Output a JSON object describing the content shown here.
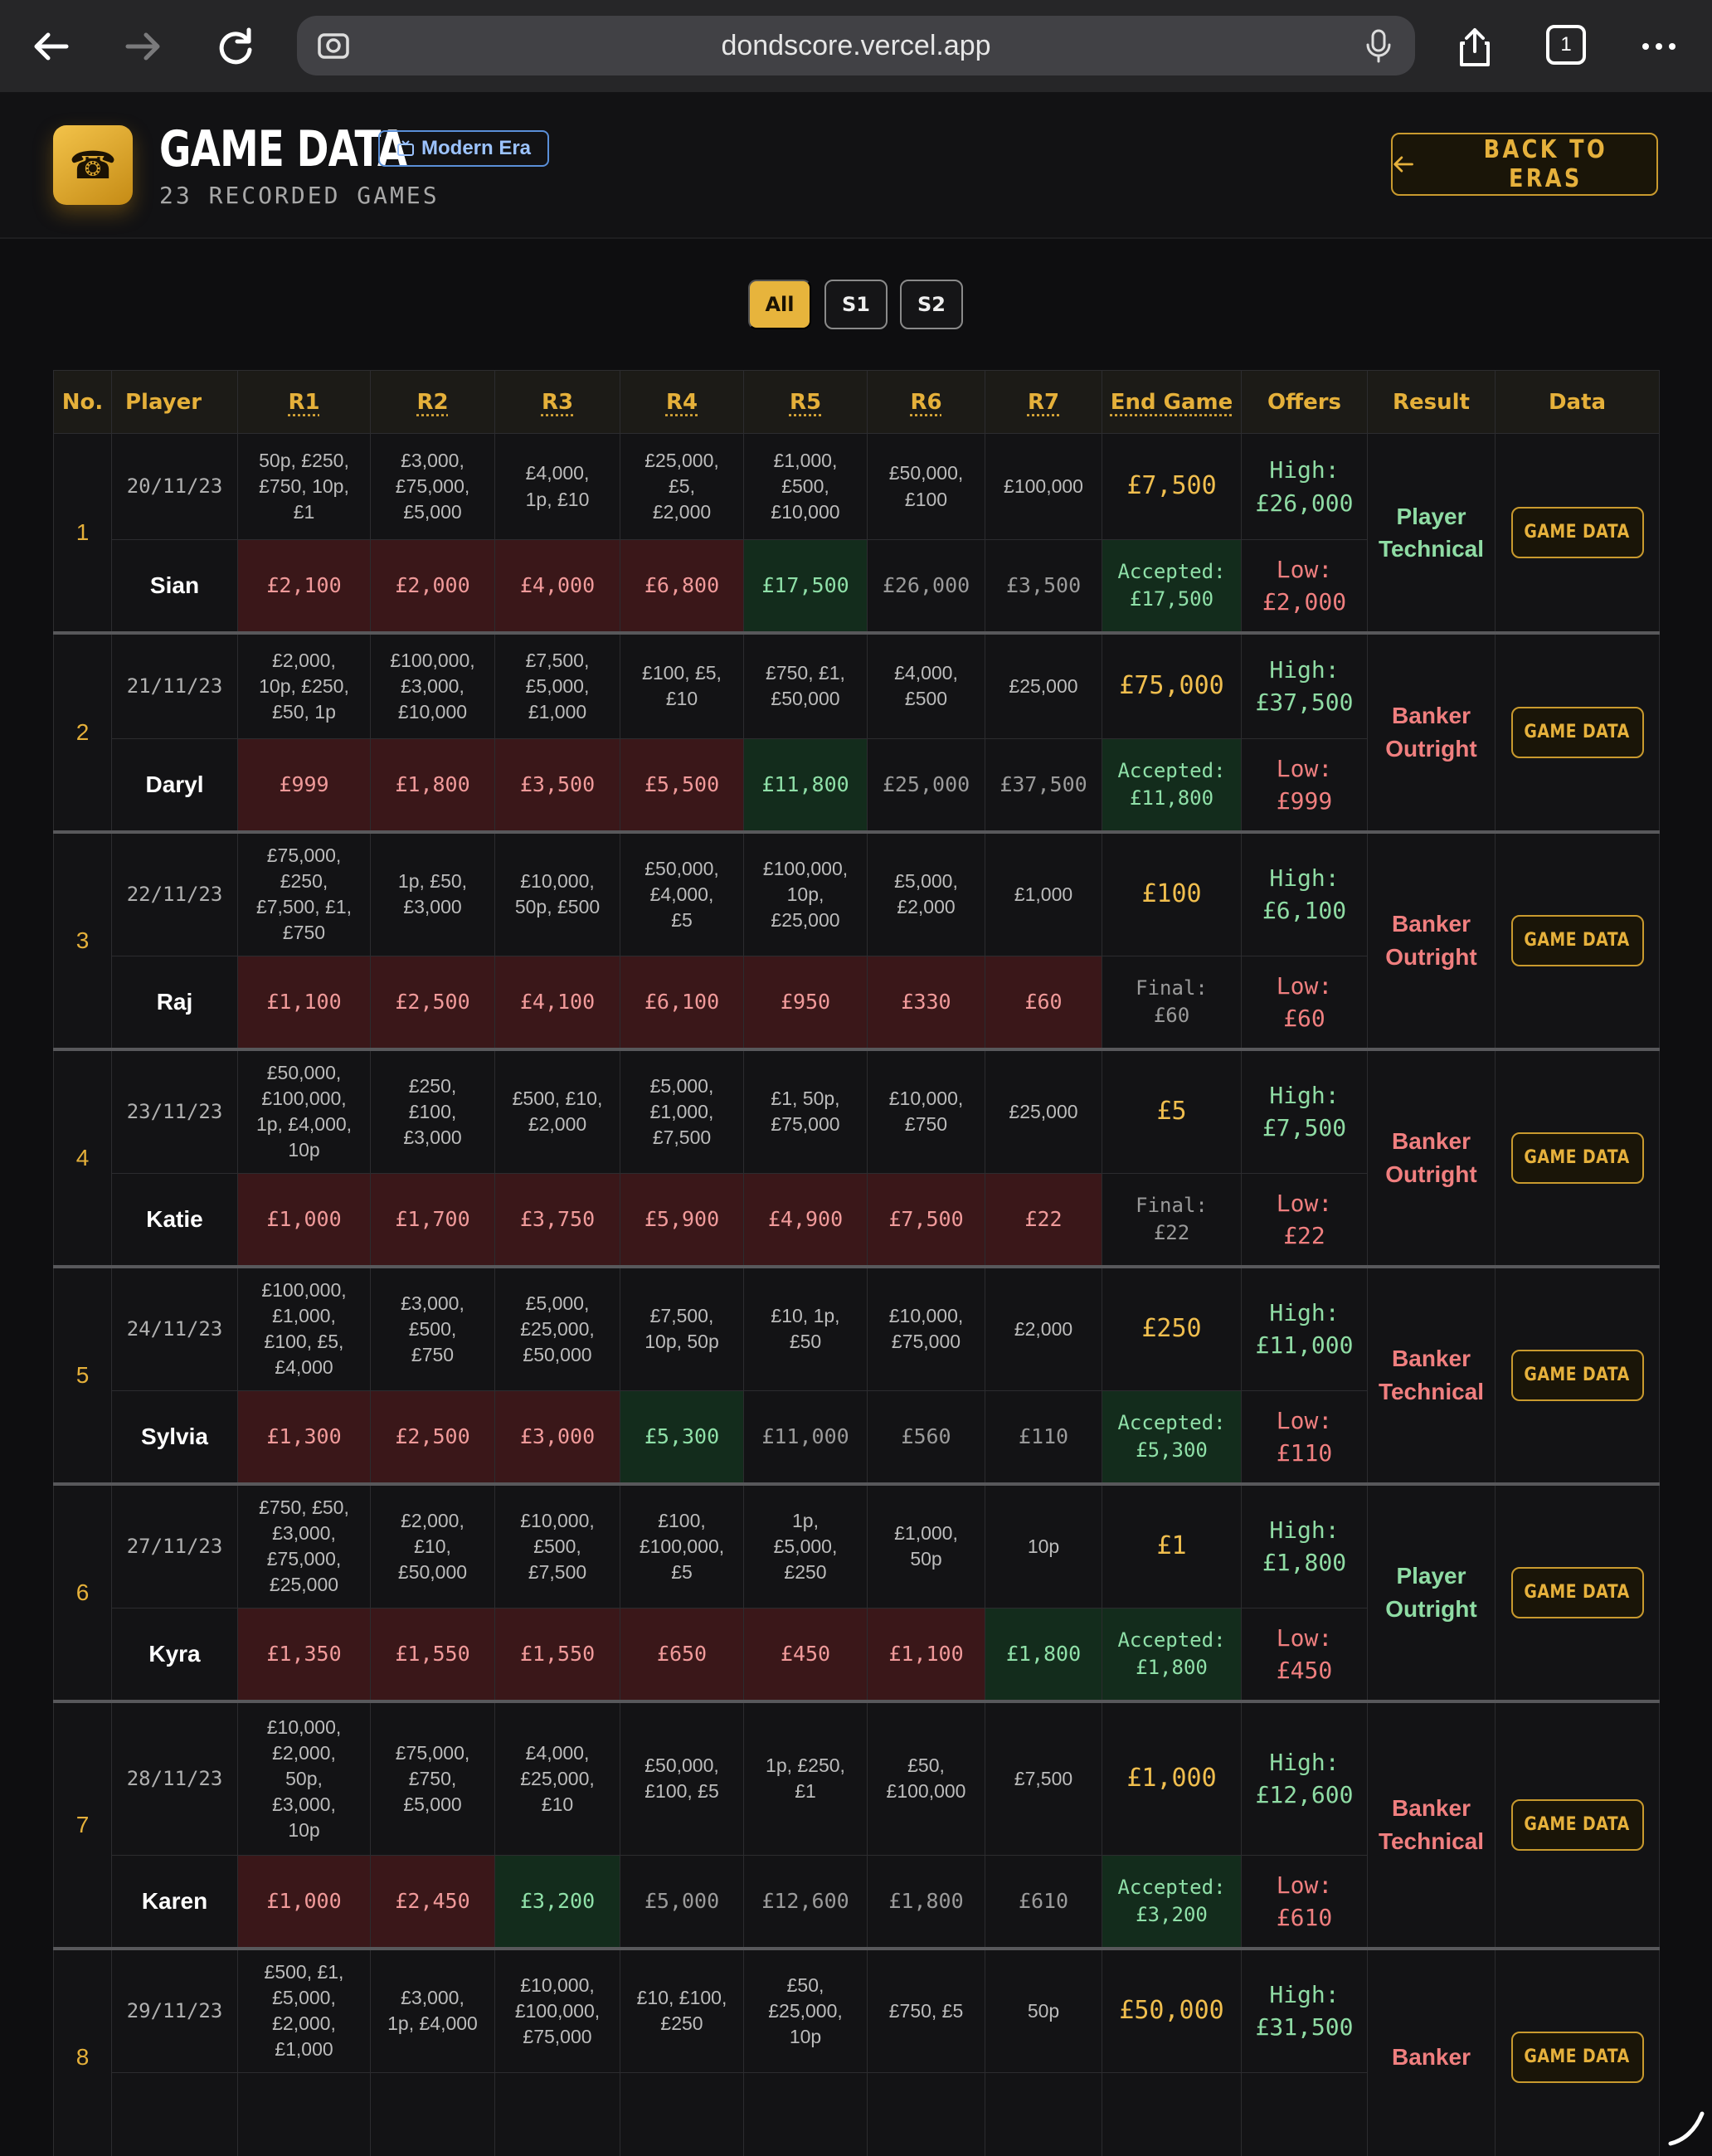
{
  "browser": {
    "url": "dondscore.vercel.app",
    "tab_count": "1"
  },
  "header": {
    "title": "GAME DATA",
    "era": "Modern Era",
    "subtitle": "23 RECORDED GAMES",
    "back_label": "BACK TO ERAS",
    "accent": "#e5b03a"
  },
  "filters": [
    {
      "label": "All",
      "active": true
    },
    {
      "label": "S1",
      "active": false
    },
    {
      "label": "S2",
      "active": false
    }
  ],
  "columns": [
    "No.",
    "Player",
    "R1",
    "R2",
    "R3",
    "R4",
    "R5",
    "R6",
    "R7",
    "End Game",
    "Offers",
    "Result",
    "Data"
  ],
  "data_button_label": "GAME DATA",
  "games": [
    {
      "no": "1",
      "date": "20/11/23",
      "player": "Sian",
      "boxes": [
        [
          "50p, £250,",
          "£750, 10p,",
          "£1"
        ],
        [
          "£3,000,",
          "£75,000,",
          "£5,000"
        ],
        [
          "£4,000,",
          "1p, £10"
        ],
        [
          "£25,000,",
          "£5,",
          "£2,000"
        ],
        [
          "£1,000,",
          "£500,",
          "£10,000"
        ],
        [
          "£50,000,",
          "£100"
        ],
        [
          "£100,000"
        ]
      ],
      "offers": [
        [
          "£2,100",
          "red"
        ],
        [
          "£2,000",
          "red"
        ],
        [
          "£4,000",
          "red"
        ],
        [
          "£6,800",
          "red"
        ],
        [
          "£17,500",
          "green"
        ],
        [
          "£26,000",
          "plain"
        ],
        [
          "£3,500",
          "plain"
        ]
      ],
      "end_game": "£7,500",
      "accepted": [
        "Accepted:",
        "£17,500"
      ],
      "accepted_style": "green",
      "high": [
        "High:",
        "£26,000"
      ],
      "low": [
        "Low:",
        "£2,000"
      ],
      "result": [
        "Player",
        "Technical"
      ],
      "result_side": "player"
    },
    {
      "no": "2",
      "date": "21/11/23",
      "player": "Daryl",
      "boxes": [
        [
          "£2,000,",
          "10p, £250,",
          "£50, 1p"
        ],
        [
          "£100,000,",
          "£3,000,",
          "£10,000"
        ],
        [
          "£7,500,",
          "£5,000,",
          "£1,000"
        ],
        [
          "£100, £5,",
          "£10"
        ],
        [
          "£750, £1,",
          "£50,000"
        ],
        [
          "£4,000,",
          "£500"
        ],
        [
          "£25,000"
        ]
      ],
      "offers": [
        [
          "£999",
          "red"
        ],
        [
          "£1,800",
          "red"
        ],
        [
          "£3,500",
          "red"
        ],
        [
          "£5,500",
          "red"
        ],
        [
          "£11,800",
          "green"
        ],
        [
          "£25,000",
          "plain"
        ],
        [
          "£37,500",
          "plain"
        ]
      ],
      "end_game": "£75,000",
      "accepted": [
        "Accepted:",
        "£11,800"
      ],
      "accepted_style": "green",
      "high": [
        "High:",
        "£37,500"
      ],
      "low": [
        "Low:",
        "£999"
      ],
      "result": [
        "Banker",
        "Outright"
      ],
      "result_side": "banker"
    },
    {
      "no": "3",
      "date": "22/11/23",
      "player": "Raj",
      "boxes": [
        [
          "£75,000,",
          "£250,",
          "£7,500, £1,",
          "£750"
        ],
        [
          "1p, £50,",
          "£3,000"
        ],
        [
          "£10,000,",
          "50p, £500"
        ],
        [
          "£50,000,",
          "£4,000,",
          "£5"
        ],
        [
          "£100,000,",
          "10p,",
          "£25,000"
        ],
        [
          "£5,000,",
          "£2,000"
        ],
        [
          "£1,000"
        ]
      ],
      "offers": [
        [
          "£1,100",
          "red"
        ],
        [
          "£2,500",
          "red"
        ],
        [
          "£4,100",
          "red"
        ],
        [
          "£6,100",
          "red"
        ],
        [
          "£950",
          "red"
        ],
        [
          "£330",
          "red"
        ],
        [
          "£60",
          "red"
        ]
      ],
      "end_game": "£100",
      "accepted": [
        "Final:",
        "£60"
      ],
      "accepted_style": "plain",
      "high": [
        "High:",
        "£6,100"
      ],
      "low": [
        "Low:",
        "£60"
      ],
      "result": [
        "Banker",
        "Outright"
      ],
      "result_side": "banker"
    },
    {
      "no": "4",
      "date": "23/11/23",
      "player": "Katie",
      "boxes": [
        [
          "£50,000,",
          "£100,000,",
          "1p, £4,000,",
          "10p"
        ],
        [
          "£250,",
          "£100,",
          "£3,000"
        ],
        [
          "£500, £10,",
          "£2,000"
        ],
        [
          "£5,000,",
          "£1,000,",
          "£7,500"
        ],
        [
          "£1, 50p,",
          "£75,000"
        ],
        [
          "£10,000,",
          "£750"
        ],
        [
          "£25,000"
        ]
      ],
      "offers": [
        [
          "£1,000",
          "red"
        ],
        [
          "£1,700",
          "red"
        ],
        [
          "£3,750",
          "red"
        ],
        [
          "£5,900",
          "red"
        ],
        [
          "£4,900",
          "red"
        ],
        [
          "£7,500",
          "red"
        ],
        [
          "£22",
          "red"
        ]
      ],
      "end_game": "£5",
      "accepted": [
        "Final:",
        "£22"
      ],
      "accepted_style": "plain",
      "high": [
        "High:",
        "£7,500"
      ],
      "low": [
        "Low:",
        "£22"
      ],
      "result": [
        "Banker",
        "Outright"
      ],
      "result_side": "banker"
    },
    {
      "no": "5",
      "date": "24/11/23",
      "player": "Sylvia",
      "boxes": [
        [
          "£100,000,",
          "£1,000,",
          "£100, £5,",
          "£4,000"
        ],
        [
          "£3,000,",
          "£500,",
          "£750"
        ],
        [
          "£5,000,",
          "£25,000,",
          "£50,000"
        ],
        [
          "£7,500,",
          "10p, 50p"
        ],
        [
          "£10, 1p,",
          "£50"
        ],
        [
          "£10,000,",
          "£75,000"
        ],
        [
          "£2,000"
        ]
      ],
      "offers": [
        [
          "£1,300",
          "red"
        ],
        [
          "£2,500",
          "red"
        ],
        [
          "£3,000",
          "red"
        ],
        [
          "£5,300",
          "green"
        ],
        [
          "£11,000",
          "plain"
        ],
        [
          "£560",
          "plain"
        ],
        [
          "£110",
          "plain"
        ]
      ],
      "end_game": "£250",
      "accepted": [
        "Accepted:",
        "£5,300"
      ],
      "accepted_style": "green",
      "high": [
        "High:",
        "£11,000"
      ],
      "low": [
        "Low:",
        "£110"
      ],
      "result": [
        "Banker",
        "Technical"
      ],
      "result_side": "banker"
    },
    {
      "no": "6",
      "date": "27/11/23",
      "player": "Kyra",
      "boxes": [
        [
          "£750, £50,",
          "£3,000,",
          "£75,000,",
          "£25,000"
        ],
        [
          "£2,000,",
          "£10,",
          "£50,000"
        ],
        [
          "£10,000,",
          "£500,",
          "£7,500"
        ],
        [
          "£100,",
          "£100,000,",
          "£5"
        ],
        [
          "1p,",
          "£5,000,",
          "£250"
        ],
        [
          "£1,000,",
          "50p"
        ],
        [
          "10p"
        ]
      ],
      "offers": [
        [
          "£1,350",
          "red"
        ],
        [
          "£1,550",
          "red"
        ],
        [
          "£1,550",
          "red"
        ],
        [
          "£650",
          "red"
        ],
        [
          "£450",
          "red"
        ],
        [
          "£1,100",
          "red"
        ],
        [
          "£1,800",
          "green"
        ]
      ],
      "end_game": "£1",
      "accepted": [
        "Accepted:",
        "£1,800"
      ],
      "accepted_style": "green",
      "high": [
        "High:",
        "£1,800"
      ],
      "low": [
        "Low:",
        "£450"
      ],
      "result": [
        "Player",
        "Outright"
      ],
      "result_side": "player"
    },
    {
      "no": "7",
      "date": "28/11/23",
      "player": "Karen",
      "boxes": [
        [
          "£10,000,",
          "£2,000,",
          "50p,",
          "£3,000,",
          "10p"
        ],
        [
          "£75,000,",
          "£750,",
          "£5,000"
        ],
        [
          "£4,000,",
          "£25,000,",
          "£10"
        ],
        [
          "£50,000,",
          "£100, £5"
        ],
        [
          "1p, £250,",
          "£1"
        ],
        [
          "£50,",
          "£100,000"
        ],
        [
          "£7,500"
        ]
      ],
      "offers": [
        [
          "£1,000",
          "red"
        ],
        [
          "£2,450",
          "red"
        ],
        [
          "£3,200",
          "green"
        ],
        [
          "£5,000",
          "plain"
        ],
        [
          "£12,600",
          "plain"
        ],
        [
          "£1,800",
          "plain"
        ],
        [
          "£610",
          "plain"
        ]
      ],
      "end_game": "£1,000",
      "accepted": [
        "Accepted:",
        "£3,200"
      ],
      "accepted_style": "green",
      "high": [
        "High:",
        "£12,600"
      ],
      "low": [
        "Low:",
        "£610"
      ],
      "result": [
        "Banker",
        "Technical"
      ],
      "result_side": "banker"
    },
    {
      "no": "8",
      "date": "29/11/23",
      "player": "",
      "boxes": [
        [
          "£500, £1,",
          "£5,000,",
          "£2,000,",
          "£1,000"
        ],
        [
          "£3,000,",
          "1p, £4,000"
        ],
        [
          "£10,000,",
          "£100,000,",
          "£75,000"
        ],
        [
          "£10, £100,",
          "£250"
        ],
        [
          "£50,",
          "£25,000,",
          "10p"
        ],
        [
          "£750, £5"
        ],
        [
          "50p"
        ]
      ],
      "offers": [],
      "end_game": "£50,000",
      "accepted": [
        "",
        ""
      ],
      "accepted_style": "plain",
      "high": [
        "High:",
        "£31,500"
      ],
      "low": [
        "",
        ""
      ],
      "result": [
        "Banker",
        ""
      ],
      "result_side": "banker"
    }
  ]
}
